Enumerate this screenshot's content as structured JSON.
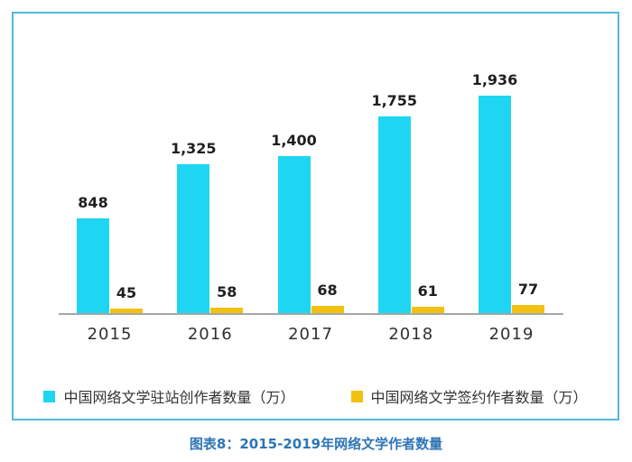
{
  "caption": "图表8：2015-2019年网络文学作者数量",
  "colors": {
    "series1": "#1ed6f2",
    "series2": "#f2c011",
    "card_border": "#55b7dd",
    "axis": "#a6a6a6",
    "caption_text": "#2e75b6"
  },
  "chart_data": {
    "type": "bar",
    "categories": [
      "2015",
      "2016",
      "2017",
      "2018",
      "2019"
    ],
    "series": [
      {
        "name": "中国网络文学驻站创作者数量（万）",
        "color": "#1ed6f2",
        "values": [
          848,
          1325,
          1400,
          1755,
          1936
        ],
        "labels": [
          "848",
          "1,325",
          "1,400",
          "1,755",
          "1,936"
        ]
      },
      {
        "name": "中国网络文学签约作者数量（万）",
        "color": "#f2c011",
        "values": [
          45,
          58,
          68,
          61,
          77
        ],
        "labels": [
          "45",
          "58",
          "68",
          "61",
          "77"
        ]
      }
    ],
    "title": "图表8：2015-2019年网络文学作者数量",
    "xlabel": "",
    "ylabel": "",
    "ylim": [
      0,
      1936
    ],
    "grid": false,
    "legend_position": "bottom"
  }
}
